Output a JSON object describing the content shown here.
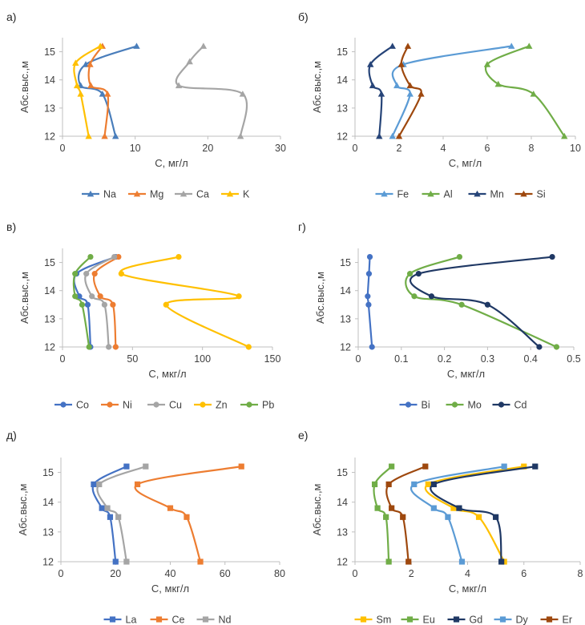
{
  "chart_data": [
    {
      "type": "line",
      "panel": "а)",
      "ylabel": "Абс.выс.,м",
      "xlabel": "С, мг/л",
      "xlim": [
        0,
        30
      ],
      "ylim": [
        12,
        15.5
      ],
      "xticks": [
        "0",
        "10",
        "20",
        "30"
      ],
      "yticks": [
        "12",
        "13",
        "14",
        "15"
      ],
      "legend_position": "bottom",
      "series": [
        {
          "name": "Na",
          "color": "#4a7ebb",
          "marker": "triangle",
          "points": [
            [
              10.2,
              15.2
            ],
            [
              3.2,
              14.55
            ],
            [
              2.5,
              13.8
            ],
            [
              5.5,
              13.5
            ],
            [
              7.3,
              12
            ]
          ]
        },
        {
          "name": "Mg",
          "color": "#ed7d31",
          "marker": "triangle",
          "points": [
            [
              5.5,
              15.2
            ],
            [
              3.8,
              14.55
            ],
            [
              3.9,
              13.8
            ],
            [
              6.2,
              13.5
            ],
            [
              5.8,
              12
            ]
          ]
        },
        {
          "name": "Ca",
          "color": "#a5a5a5",
          "marker": "triangle",
          "points": [
            [
              19.4,
              15.2
            ],
            [
              17.5,
              14.65
            ],
            [
              16.0,
              13.8
            ],
            [
              24.8,
              13.5
            ],
            [
              24.5,
              12
            ]
          ]
        },
        {
          "name": "K",
          "color": "#ffc000",
          "marker": "triangle",
          "points": [
            [
              5.2,
              15.2
            ],
            [
              1.8,
              14.6
            ],
            [
              2.0,
              13.8
            ],
            [
              2.5,
              13.5
            ],
            [
              3.6,
              12
            ]
          ]
        }
      ]
    },
    {
      "type": "line",
      "panel": "б)",
      "ylabel": "Абс.выс.,м",
      "xlabel": "С, мг/л",
      "xlim": [
        0,
        10
      ],
      "ylim": [
        12,
        15.5
      ],
      "xticks": [
        "0",
        "2",
        "4",
        "6",
        "8",
        "10"
      ],
      "yticks": [
        "12",
        "13",
        "14",
        "15"
      ],
      "legend_position": "bottom",
      "series": [
        {
          "name": "Fe",
          "color": "#5b9bd5",
          "marker": "triangle",
          "points": [
            [
              7.1,
              15.2
            ],
            [
              2.2,
              14.55
            ],
            [
              1.9,
              13.8
            ],
            [
              2.5,
              13.5
            ],
            [
              1.7,
              12
            ]
          ]
        },
        {
          "name": "Al",
          "color": "#70ad47",
          "marker": "triangle",
          "points": [
            [
              7.9,
              15.2
            ],
            [
              6.0,
              14.55
            ],
            [
              6.5,
              13.85
            ],
            [
              8.1,
              13.5
            ],
            [
              9.5,
              12
            ]
          ]
        },
        {
          "name": "Mn",
          "color": "#264478",
          "marker": "triangle",
          "points": [
            [
              1.7,
              15.2
            ],
            [
              0.7,
              14.55
            ],
            [
              0.8,
              13.8
            ],
            [
              1.2,
              13.5
            ],
            [
              1.1,
              12
            ]
          ]
        },
        {
          "name": "Si",
          "color": "#9e480e",
          "marker": "triangle",
          "points": [
            [
              2.4,
              15.2
            ],
            [
              2.1,
              14.55
            ],
            [
              2.5,
              13.8
            ],
            [
              3.0,
              13.5
            ],
            [
              2.0,
              12
            ]
          ]
        }
      ]
    },
    {
      "type": "line",
      "panel": "в)",
      "ylabel": "Абс.выс.,м",
      "xlabel": "С, мкг/л",
      "xlim": [
        0,
        150
      ],
      "ylim": [
        12,
        15.5
      ],
      "xticks": [
        "0",
        "50",
        "100",
        "150"
      ],
      "yticks": [
        "12",
        "13",
        "14",
        "15"
      ],
      "legend_position": "bottom",
      "series": [
        {
          "name": "Co",
          "color": "#4472c4",
          "marker": "circle",
          "points": [
            [
              38,
              15.2
            ],
            [
              10,
              14.6
            ],
            [
              12,
              13.8
            ],
            [
              18,
              13.5
            ],
            [
              20,
              12
            ]
          ]
        },
        {
          "name": "Ni",
          "color": "#ed7d31",
          "marker": "circle",
          "points": [
            [
              40,
              15.2
            ],
            [
              23,
              14.6
            ],
            [
              27,
              13.8
            ],
            [
              36,
              13.5
            ],
            [
              38,
              12
            ]
          ]
        },
        {
          "name": "Cu",
          "color": "#a5a5a5",
          "marker": "circle",
          "points": [
            [
              37,
              15.2
            ],
            [
              17,
              14.6
            ],
            [
              21,
              13.8
            ],
            [
              30,
              13.5
            ],
            [
              33,
              12
            ]
          ]
        },
        {
          "name": "Zn",
          "color": "#ffc000",
          "marker": "circle",
          "points": [
            [
              83,
              15.2
            ],
            [
              42,
              14.6
            ],
            [
              126,
              13.8
            ],
            [
              74,
              13.5
            ],
            [
              133,
              12
            ]
          ]
        },
        {
          "name": "Pb",
          "color": "#70ad47",
          "marker": "circle",
          "points": [
            [
              20,
              15.2
            ],
            [
              9,
              14.6
            ],
            [
              9,
              13.8
            ],
            [
              14,
              13.5
            ],
            [
              19,
              12
            ]
          ]
        }
      ]
    },
    {
      "type": "line",
      "panel": "г)",
      "ylabel": "Абс.выс.,м",
      "xlabel": "С, мкг/л",
      "xlim": [
        0,
        0.5
      ],
      "ylim": [
        12,
        15.5
      ],
      "xticks": [
        "0",
        "0.1",
        "0.2",
        "0.3",
        "0.4",
        "0.5"
      ],
      "yticks": [
        "12",
        "13",
        "14",
        "15"
      ],
      "legend_position": "bottom",
      "series": [
        {
          "name": "Bi",
          "color": "#4472c4",
          "marker": "circle",
          "points": [
            [
              0.027,
              15.2
            ],
            [
              0.025,
              14.6
            ],
            [
              0.022,
              13.8
            ],
            [
              0.024,
              13.5
            ],
            [
              0.032,
              12
            ]
          ]
        },
        {
          "name": "Mo",
          "color": "#70ad47",
          "marker": "circle",
          "points": [
            [
              0.235,
              15.2
            ],
            [
              0.12,
              14.6
            ],
            [
              0.13,
              13.8
            ],
            [
              0.24,
              13.5
            ],
            [
              0.46,
              12
            ]
          ]
        },
        {
          "name": "Cd",
          "color": "#1f3864",
          "marker": "circle",
          "points": [
            [
              0.45,
              15.2
            ],
            [
              0.14,
              14.6
            ],
            [
              0.17,
              13.8
            ],
            [
              0.3,
              13.5
            ],
            [
              0.42,
              12
            ]
          ]
        }
      ]
    },
    {
      "type": "line",
      "panel": "д)",
      "ylabel": "Абс.выс.,м",
      "xlabel": "С, мкг/л",
      "xlim": [
        0,
        80
      ],
      "ylim": [
        12,
        15.5
      ],
      "xticks": [
        "0",
        "20",
        "40",
        "60",
        "80"
      ],
      "yticks": [
        "12",
        "13",
        "14",
        "15"
      ],
      "legend_position": "bottom",
      "series": [
        {
          "name": "La",
          "color": "#4472c4",
          "marker": "square",
          "points": [
            [
              24,
              15.2
            ],
            [
              12,
              14.6
            ],
            [
              15,
              13.8
            ],
            [
              18,
              13.5
            ],
            [
              20,
              12
            ]
          ]
        },
        {
          "name": "Ce",
          "color": "#ed7d31",
          "marker": "square",
          "points": [
            [
              66,
              15.2
            ],
            [
              28,
              14.6
            ],
            [
              40,
              13.8
            ],
            [
              46,
              13.5
            ],
            [
              51,
              12
            ]
          ]
        },
        {
          "name": "Nd",
          "color": "#a5a5a5",
          "marker": "square",
          "points": [
            [
              31,
              15.2
            ],
            [
              14,
              14.6
            ],
            [
              17,
              13.8
            ],
            [
              21,
              13.5
            ],
            [
              24,
              12
            ]
          ]
        }
      ]
    },
    {
      "type": "line",
      "panel": "е)",
      "ylabel": "Абс.выс.,м",
      "xlabel": "С, мкг/л",
      "xlim": [
        0,
        8
      ],
      "ylim": [
        12,
        15.5
      ],
      "xticks": [
        "0",
        "2",
        "4",
        "6",
        "8"
      ],
      "yticks": [
        "12",
        "13",
        "14",
        "15"
      ],
      "legend_position": "bottom",
      "series": [
        {
          "name": "Sm",
          "color": "#ffc000",
          "marker": "square",
          "points": [
            [
              6.0,
              15.2
            ],
            [
              2.6,
              14.6
            ],
            [
              3.5,
              13.8
            ],
            [
              4.4,
              13.5
            ],
            [
              5.3,
              12
            ]
          ]
        },
        {
          "name": "Eu",
          "color": "#70ad47",
          "marker": "square",
          "points": [
            [
              1.3,
              15.2
            ],
            [
              0.7,
              14.6
            ],
            [
              0.8,
              13.8
            ],
            [
              1.1,
              13.5
            ],
            [
              1.2,
              12
            ]
          ]
        },
        {
          "name": "Gd",
          "color": "#1f3864",
          "marker": "square",
          "points": [
            [
              6.4,
              15.2
            ],
            [
              2.8,
              14.6
            ],
            [
              3.7,
              13.8
            ],
            [
              5.0,
              13.5
            ],
            [
              5.2,
              12
            ]
          ]
        },
        {
          "name": "Dy",
          "color": "#5b9bd5",
          "marker": "square",
          "points": [
            [
              5.3,
              15.2
            ],
            [
              2.1,
              14.6
            ],
            [
              2.8,
              13.8
            ],
            [
              3.3,
              13.5
            ],
            [
              3.8,
              12
            ]
          ]
        },
        {
          "name": "Er",
          "color": "#9e480e",
          "marker": "square",
          "points": [
            [
              2.5,
              15.2
            ],
            [
              1.2,
              14.6
            ],
            [
              1.3,
              13.8
            ],
            [
              1.7,
              13.5
            ],
            [
              1.9,
              12
            ]
          ]
        }
      ]
    }
  ]
}
